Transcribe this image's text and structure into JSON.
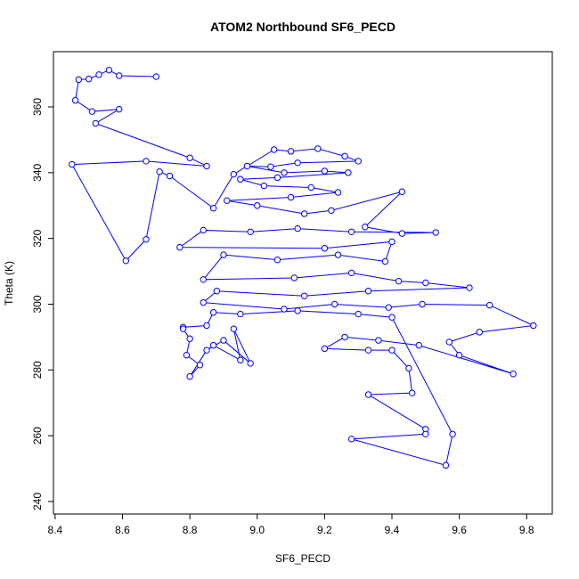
{
  "chart_data": {
    "type": "line",
    "title": "ATOM2 Northbound SF6_PECD",
    "x_label": "SF6_PECD",
    "y_label": "Theta (K)",
    "xlim": [
      8.395,
      9.876
    ],
    "ylim": [
      236.2,
      376.8
    ],
    "xticks": [
      8.4,
      8.6,
      8.8,
      {
        "value": 9,
        "label": "9.0"
      },
      9.2,
      9.4,
      9.6,
      9.8
    ],
    "yticks": [
      240,
      260,
      280,
      300,
      320,
      340,
      360
    ],
    "x": [
      8.7,
      8.59,
      8.56,
      8.53,
      8.5,
      8.47,
      8.46,
      8.51,
      8.59,
      8.52,
      8.8,
      8.85,
      8.67,
      8.45,
      8.61,
      8.67,
      8.71,
      8.74,
      8.87,
      8.93,
      9.05,
      9.1,
      9.18,
      9.26,
      9.3,
      9.12,
      9.04,
      8.97,
      9.08,
      9.2,
      9.27,
      9.06,
      8.95,
      9.02,
      9.16,
      9.24,
      9.1,
      8.91,
      9.0,
      9.14,
      9.22,
      9.43,
      9.32,
      9.43,
      9.53,
      9.28,
      9.12,
      8.98,
      8.84,
      8.77,
      9.2,
      9.4,
      9.38,
      9.24,
      9.06,
      8.9,
      8.84,
      9.11,
      9.28,
      9.42,
      9.5,
      9.63,
      9.33,
      9.14,
      8.88,
      8.84,
      9.08,
      9.23,
      9.39,
      9.49,
      9.69,
      9.82,
      9.66,
      9.57,
      9.6,
      9.76,
      9.48,
      9.36,
      9.26,
      9.2,
      9.33,
      9.4,
      9.45,
      9.46,
      9.33,
      9.5,
      9.5,
      9.28,
      9.56,
      9.58,
      9.4,
      9.3,
      9.12,
      8.95,
      8.87,
      8.85,
      8.78,
      8.78,
      8.8,
      8.79,
      8.83,
      8.8,
      8.85,
      8.9,
      8.98,
      8.93,
      8.95,
      8.87
    ],
    "series": [
      {
        "color": "#0000ff",
        "values": [
          369.2,
          369.5,
          371.2,
          369.8,
          368.5,
          368.3,
          362.0,
          358.6,
          359.3,
          355.0,
          344.5,
          342.0,
          343.5,
          342.5,
          313.2,
          319.7,
          340.3,
          339.0,
          329.2,
          339.5,
          347.0,
          346.5,
          347.3,
          345.0,
          343.5,
          343.0,
          341.8,
          342.0,
          340.0,
          340.5,
          340.0,
          338.5,
          338.0,
          336.0,
          335.5,
          334.0,
          332.5,
          331.5,
          330.0,
          327.5,
          328.5,
          334.2,
          323.5,
          321.5,
          321.8,
          322.0,
          323.0,
          322.0,
          322.5,
          317.3,
          317.0,
          319.0,
          313.0,
          315.0,
          313.5,
          315.0,
          307.5,
          308.0,
          309.5,
          307.0,
          306.5,
          305.0,
          304.0,
          302.5,
          304.0,
          300.5,
          298.5,
          300.0,
          299.0,
          300.0,
          299.7,
          293.5,
          291.5,
          288.5,
          284.5,
          278.8,
          287.5,
          289.0,
          290.0,
          286.5,
          286.0,
          286.0,
          280.5,
          273.0,
          272.5,
          262.0,
          260.5,
          259.0,
          251.0,
          260.5,
          296.0,
          297.0,
          298.0,
          297.0,
          297.5,
          293.5,
          293.0,
          292.5,
          289.5,
          284.5,
          281.5,
          278.0,
          286.0,
          289.0,
          282.0,
          292.5,
          283.0,
          287.5
        ]
      }
    ]
  }
}
